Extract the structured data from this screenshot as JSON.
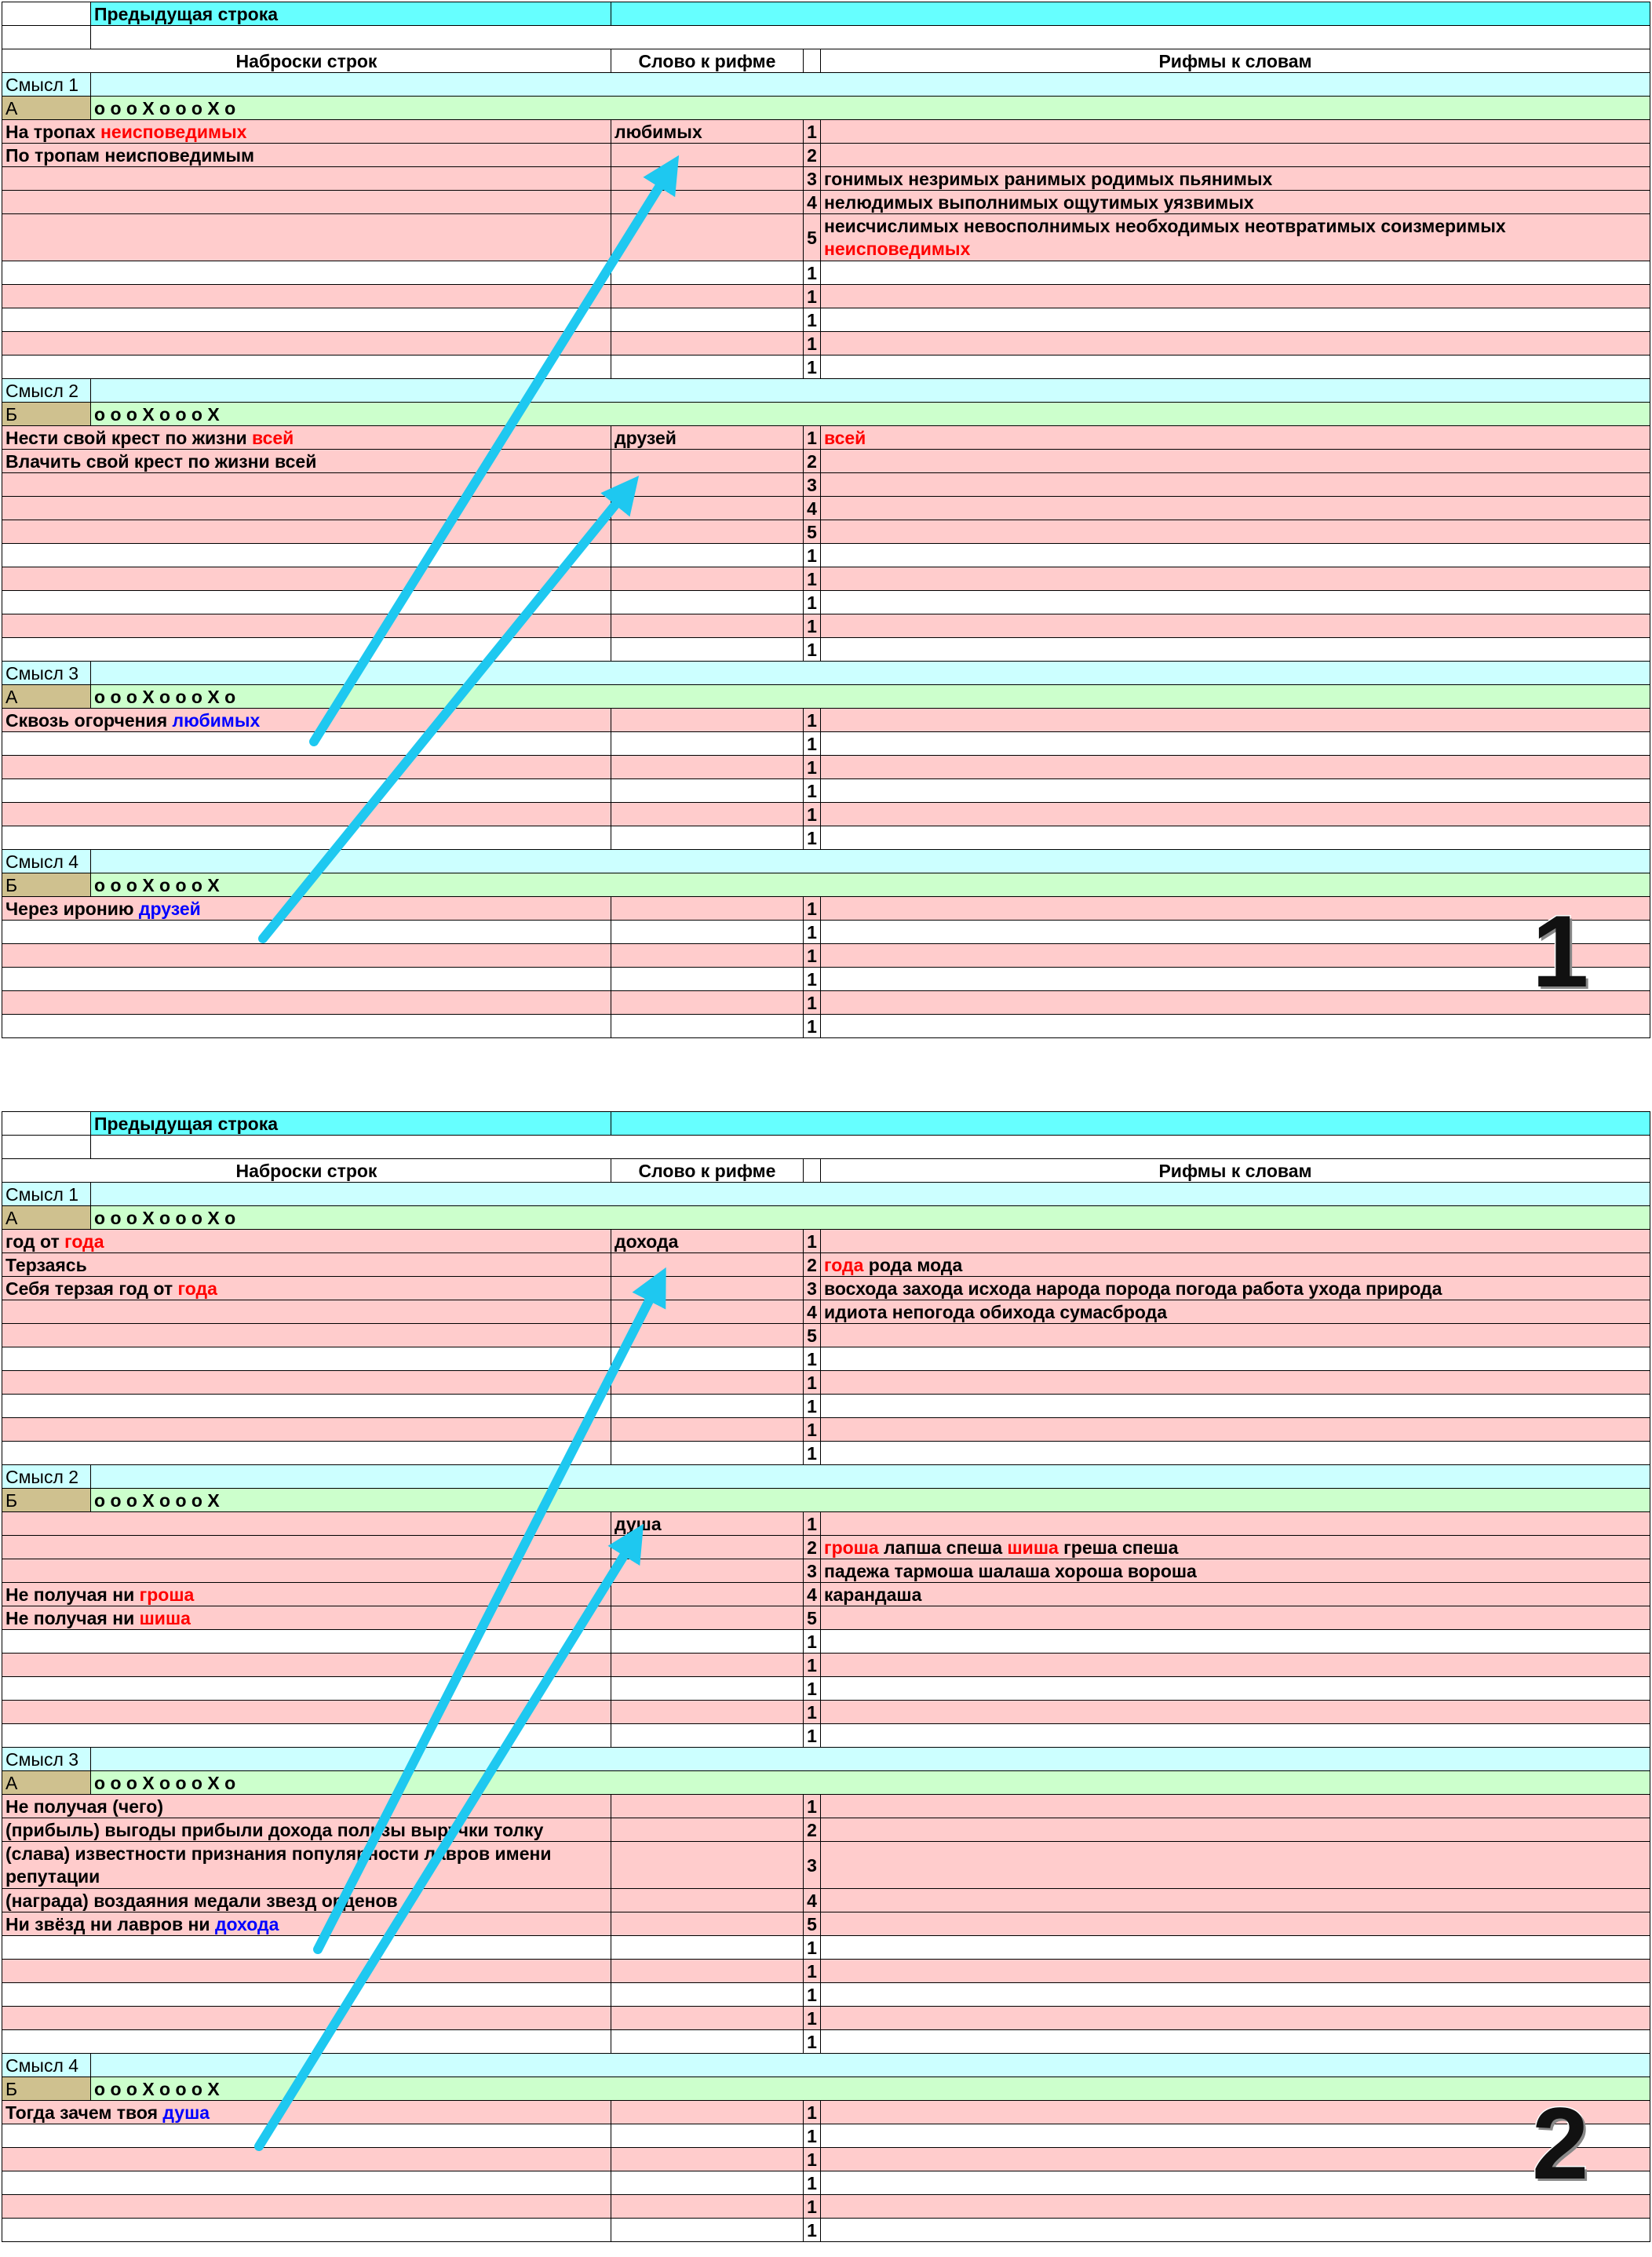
{
  "panels": [
    {
      "label": "1",
      "header": {
        "previous_line": "Предыдущая строка",
        "col_drafts": "Наброски строк",
        "col_word": "Слово к рифме",
        "col_rhymes": "Рифмы к словам"
      },
      "rows": [
        {
          "type": "sense",
          "text": "Смысл 1"
        },
        {
          "type": "scheme",
          "letter": "А",
          "pattern": "o o o X o o o X o"
        },
        {
          "type": "data",
          "bg": "pink",
          "draft": [
            [
              "На тропах ",
              ""
            ],
            [
              "неисповедимых",
              "red"
            ]
          ],
          "word": "любимых",
          "num": "1",
          "rhymes": []
        },
        {
          "type": "data",
          "bg": "pink",
          "draft": [
            [
              "По тропам неисповедимым",
              ""
            ]
          ],
          "word": "",
          "num": "2",
          "rhymes": []
        },
        {
          "type": "data",
          "bg": "pink",
          "draft": [],
          "word": "",
          "num": "3",
          "rhymes": [
            [
              "гонимых незримых ранимых родимых пьянимых",
              ""
            ]
          ]
        },
        {
          "type": "data",
          "bg": "pink",
          "draft": [],
          "word": "",
          "num": "4",
          "rhymes": [
            [
              "нелюдимых выполнимых ощутимых уязвимых",
              ""
            ]
          ]
        },
        {
          "type": "data",
          "bg": "pink",
          "tall": true,
          "draft": [],
          "word": "",
          "num": "5",
          "rhymes": [
            [
              "неисчислимых невосполнимых необходимых неотвратимых соизмеримых ",
              ""
            ],
            [
              "неисповедимых",
              "red"
            ]
          ]
        },
        {
          "type": "data",
          "bg": "white",
          "draft": [],
          "word": "",
          "num": "1",
          "rhymes": []
        },
        {
          "type": "data",
          "bg": "pink",
          "draft": [],
          "word": "",
          "num": "1",
          "rhymes": []
        },
        {
          "type": "data",
          "bg": "white",
          "draft": [],
          "word": "",
          "num": "1",
          "rhymes": []
        },
        {
          "type": "data",
          "bg": "pink",
          "draft": [],
          "word": "",
          "num": "1",
          "rhymes": []
        },
        {
          "type": "data",
          "bg": "white",
          "draft": [],
          "word": "",
          "num": "1",
          "rhymes": []
        },
        {
          "type": "sense",
          "text": "Смысл 2"
        },
        {
          "type": "scheme",
          "letter": "Б",
          "pattern": "o o o X o o o X"
        },
        {
          "type": "data",
          "bg": "pink",
          "draft": [
            [
              "Нести свой крест по жизни ",
              ""
            ],
            [
              "всей",
              "red"
            ]
          ],
          "word": "друзей",
          "num": "1",
          "rhymes": [
            [
              "всей",
              "red"
            ]
          ]
        },
        {
          "type": "data",
          "bg": "pink",
          "draft": [
            [
              "Влачить свой крест по жизни всей",
              ""
            ]
          ],
          "word": "",
          "num": "2",
          "rhymes": []
        },
        {
          "type": "data",
          "bg": "pink",
          "draft": [],
          "word": "",
          "num": "3",
          "rhymes": []
        },
        {
          "type": "data",
          "bg": "pink",
          "draft": [],
          "word": "",
          "num": "4",
          "rhymes": []
        },
        {
          "type": "data",
          "bg": "pink",
          "draft": [],
          "word": "",
          "num": "5",
          "rhymes": []
        },
        {
          "type": "data",
          "bg": "white",
          "draft": [],
          "word": "",
          "num": "1",
          "rhymes": []
        },
        {
          "type": "data",
          "bg": "pink",
          "draft": [],
          "word": "",
          "num": "1",
          "rhymes": []
        },
        {
          "type": "data",
          "bg": "white",
          "draft": [],
          "word": "",
          "num": "1",
          "rhymes": []
        },
        {
          "type": "data",
          "bg": "pink",
          "draft": [],
          "word": "",
          "num": "1",
          "rhymes": []
        },
        {
          "type": "data",
          "bg": "white",
          "draft": [],
          "word": "",
          "num": "1",
          "rhymes": []
        },
        {
          "type": "sense",
          "text": "Смысл 3"
        },
        {
          "type": "scheme",
          "letter": "А",
          "pattern": "o o o X o o o X o"
        },
        {
          "type": "data",
          "bg": "pink",
          "draft": [
            [
              "Сквозь огорчения ",
              ""
            ],
            [
              "любимых",
              "blue"
            ]
          ],
          "word": "",
          "num": "1",
          "rhymes": []
        },
        {
          "type": "data",
          "bg": "white",
          "draft": [],
          "word": "",
          "num": "1",
          "rhymes": []
        },
        {
          "type": "data",
          "bg": "pink",
          "draft": [],
          "word": "",
          "num": "1",
          "rhymes": []
        },
        {
          "type": "data",
          "bg": "white",
          "draft": [],
          "word": "",
          "num": "1",
          "rhymes": []
        },
        {
          "type": "data",
          "bg": "pink",
          "draft": [],
          "word": "",
          "num": "1",
          "rhymes": []
        },
        {
          "type": "data",
          "bg": "white",
          "draft": [],
          "word": "",
          "num": "1",
          "rhymes": []
        },
        {
          "type": "sense",
          "text": "Смысл 4"
        },
        {
          "type": "scheme",
          "letter": "Б",
          "pattern": "o o o X o o o X"
        },
        {
          "type": "data",
          "bg": "pink",
          "draft": [
            [
              "Через иронию ",
              ""
            ],
            [
              "друзей",
              "blue"
            ]
          ],
          "word": "",
          "num": "1",
          "rhymes": []
        },
        {
          "type": "data",
          "bg": "white",
          "draft": [],
          "word": "",
          "num": "1",
          "rhymes": []
        },
        {
          "type": "data",
          "bg": "pink",
          "draft": [],
          "word": "",
          "num": "1",
          "rhymes": []
        },
        {
          "type": "data",
          "bg": "white",
          "draft": [],
          "word": "",
          "num": "1",
          "rhymes": []
        },
        {
          "type": "data",
          "bg": "pink",
          "draft": [],
          "word": "",
          "num": "1",
          "rhymes": []
        },
        {
          "type": "data",
          "bg": "white",
          "draft": [],
          "word": "",
          "num": "1",
          "rhymes": []
        }
      ]
    },
    {
      "label": "2",
      "header": {
        "previous_line": "Предыдущая строка",
        "col_drafts": "Наброски строк",
        "col_word": "Слово к рифме",
        "col_rhymes": "Рифмы к словам"
      },
      "rows": [
        {
          "type": "sense",
          "text": "Смысл 1"
        },
        {
          "type": "scheme",
          "letter": "А",
          "pattern": "o o o X o o o X o"
        },
        {
          "type": "data",
          "bg": "pink",
          "draft": [
            [
              "год от ",
              ""
            ],
            [
              "года",
              "red"
            ]
          ],
          "word": "дохода",
          "num": "1",
          "rhymes": []
        },
        {
          "type": "data",
          "bg": "pink",
          "draft": [
            [
              "Терзаясь",
              ""
            ]
          ],
          "word": "",
          "num": "2",
          "rhymes": [
            [
              "года",
              "red"
            ],
            [
              " рода мода",
              ""
            ]
          ]
        },
        {
          "type": "data",
          "bg": "pink",
          "draft": [
            [
              "Себя терзая год от ",
              ""
            ],
            [
              "года",
              "red"
            ]
          ],
          "word": "",
          "num": "3",
          "rhymes": [
            [
              "восхода захода исхода народа порода погода работа ухода природа",
              ""
            ]
          ]
        },
        {
          "type": "data",
          "bg": "pink",
          "draft": [],
          "word": "",
          "num": "4",
          "rhymes": [
            [
              "идиота непогода обихода сумасброда",
              ""
            ]
          ]
        },
        {
          "type": "data",
          "bg": "pink",
          "draft": [],
          "word": "",
          "num": "5",
          "rhymes": []
        },
        {
          "type": "data",
          "bg": "white",
          "draft": [],
          "word": "",
          "num": "1",
          "rhymes": []
        },
        {
          "type": "data",
          "bg": "pink",
          "draft": [],
          "word": "",
          "num": "1",
          "rhymes": []
        },
        {
          "type": "data",
          "bg": "white",
          "draft": [],
          "word": "",
          "num": "1",
          "rhymes": []
        },
        {
          "type": "data",
          "bg": "pink",
          "draft": [],
          "word": "",
          "num": "1",
          "rhymes": []
        },
        {
          "type": "data",
          "bg": "white",
          "draft": [],
          "word": "",
          "num": "1",
          "rhymes": []
        },
        {
          "type": "sense",
          "text": "Смысл 2"
        },
        {
          "type": "scheme",
          "letter": "Б",
          "pattern": "o o o X o o o X"
        },
        {
          "type": "data",
          "bg": "pink",
          "draft": [],
          "word": "душа",
          "num": "1",
          "rhymes": []
        },
        {
          "type": "data",
          "bg": "pink",
          "draft": [],
          "word": "",
          "num": "2",
          "rhymes": [
            [
              "гроша",
              "red"
            ],
            [
              " лапша спеша ",
              ""
            ],
            [
              "шиша",
              "red"
            ],
            [
              " греша спеша",
              ""
            ]
          ]
        },
        {
          "type": "data",
          "bg": "pink",
          "draft": [],
          "word": "",
          "num": "3",
          "rhymes": [
            [
              "падежа тармоша шалаша хороша вороша",
              ""
            ]
          ]
        },
        {
          "type": "data",
          "bg": "pink",
          "draft": [
            [
              "Не получая ни ",
              ""
            ],
            [
              "гроша",
              "red"
            ]
          ],
          "word": "",
          "num": "4",
          "rhymes": [
            [
              "карандаша",
              ""
            ]
          ]
        },
        {
          "type": "data",
          "bg": "pink",
          "draft": [
            [
              "Не получая ни ",
              ""
            ],
            [
              "шиша",
              "red"
            ]
          ],
          "word": "",
          "num": "5",
          "rhymes": []
        },
        {
          "type": "data",
          "bg": "white",
          "draft": [],
          "word": "",
          "num": "1",
          "rhymes": []
        },
        {
          "type": "data",
          "bg": "pink",
          "draft": [],
          "word": "",
          "num": "1",
          "rhymes": []
        },
        {
          "type": "data",
          "bg": "white",
          "draft": [],
          "word": "",
          "num": "1",
          "rhymes": []
        },
        {
          "type": "data",
          "bg": "pink",
          "draft": [],
          "word": "",
          "num": "1",
          "rhymes": []
        },
        {
          "type": "data",
          "bg": "white",
          "draft": [],
          "word": "",
          "num": "1",
          "rhymes": []
        },
        {
          "type": "sense",
          "text": "Смысл 3"
        },
        {
          "type": "scheme",
          "letter": "А",
          "pattern": "o o o X o o o X o"
        },
        {
          "type": "data",
          "bg": "pink",
          "draft": [
            [
              "Не получая (чего)",
              ""
            ]
          ],
          "word": "",
          "num": "1",
          "rhymes": []
        },
        {
          "type": "data",
          "bg": "pink",
          "draft": [
            [
              "(прибыль) выгоды прибыли дохода пользы выручки толку",
              ""
            ]
          ],
          "word": "",
          "num": "2",
          "rhymes": []
        },
        {
          "type": "data",
          "bg": "pink",
          "tall": true,
          "draft": [
            [
              "(слава) известности признания популярности лавров имени репутации",
              ""
            ]
          ],
          "word": "",
          "num": "3",
          "rhymes": []
        },
        {
          "type": "data",
          "bg": "pink",
          "draft": [
            [
              "(награда) воздаяния медали звезд орденов",
              ""
            ]
          ],
          "word": "",
          "num": "4",
          "rhymes": []
        },
        {
          "type": "data",
          "bg": "pink",
          "draft": [
            [
              "Ни звёзд ни лавров ни ",
              ""
            ],
            [
              "дохода",
              "blue"
            ]
          ],
          "word": "",
          "num": "5",
          "rhymes": []
        },
        {
          "type": "data",
          "bg": "white",
          "draft": [],
          "word": "",
          "num": "1",
          "rhymes": []
        },
        {
          "type": "data",
          "bg": "pink",
          "draft": [],
          "word": "",
          "num": "1",
          "rhymes": []
        },
        {
          "type": "data",
          "bg": "white",
          "draft": [],
          "word": "",
          "num": "1",
          "rhymes": []
        },
        {
          "type": "data",
          "bg": "pink",
          "draft": [],
          "word": "",
          "num": "1",
          "rhymes": []
        },
        {
          "type": "data",
          "bg": "white",
          "draft": [],
          "word": "",
          "num": "1",
          "rhymes": []
        },
        {
          "type": "sense",
          "text": "Смысл 4"
        },
        {
          "type": "scheme",
          "letter": "Б",
          "pattern": "o o o X o o o X"
        },
        {
          "type": "data",
          "bg": "pink",
          "draft": [
            [
              "Тогда зачем твоя ",
              ""
            ],
            [
              "душа",
              "blue"
            ]
          ],
          "word": "",
          "num": "1",
          "rhymes": []
        },
        {
          "type": "data",
          "bg": "white",
          "draft": [],
          "word": "",
          "num": "1",
          "rhymes": []
        },
        {
          "type": "data",
          "bg": "pink",
          "draft": [],
          "word": "",
          "num": "1",
          "rhymes": []
        },
        {
          "type": "data",
          "bg": "white",
          "draft": [],
          "word": "",
          "num": "1",
          "rhymes": []
        },
        {
          "type": "data",
          "bg": "pink",
          "draft": [],
          "word": "",
          "num": "1",
          "rhymes": []
        },
        {
          "type": "data",
          "bg": "white",
          "draft": [],
          "word": "",
          "num": "1",
          "rhymes": []
        }
      ]
    }
  ],
  "colors": {
    "arrow": "#1ec8f0",
    "rhyme_highlight": "#ff0000",
    "rhyme_target": "#0000ff",
    "pink_row": "#ffcccc",
    "sense_row": "#ccffff",
    "scheme_row": "#ccffcc",
    "previous_line": "#66ffff"
  }
}
